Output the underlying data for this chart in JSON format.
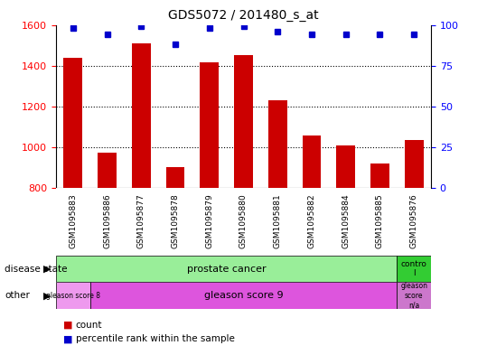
{
  "title": "GDS5072 / 201480_s_at",
  "samples": [
    "GSM1095883",
    "GSM1095886",
    "GSM1095877",
    "GSM1095878",
    "GSM1095879",
    "GSM1095880",
    "GSM1095881",
    "GSM1095882",
    "GSM1095884",
    "GSM1095885",
    "GSM1095876"
  ],
  "counts": [
    1440,
    975,
    1510,
    905,
    1415,
    1450,
    1230,
    1060,
    1010,
    920,
    1035
  ],
  "percentile_ranks": [
    98,
    94,
    99,
    88,
    98,
    99,
    96,
    94,
    94,
    94,
    94
  ],
  "ylim_left": [
    800,
    1600
  ],
  "ylim_right": [
    0,
    100
  ],
  "yticks_left": [
    800,
    1000,
    1200,
    1400,
    1600
  ],
  "yticks_right": [
    0,
    25,
    50,
    75,
    100
  ],
  "bar_color": "#cc0000",
  "dot_color": "#0000cc",
  "bg_color": "#ffffff",
  "plot_bg": "#ffffff",
  "sample_bg": "#cccccc",
  "disease_state_pc_color": "#99ee99",
  "disease_state_ctrl_color": "#33cc33",
  "gleason8_color": "#ee99ee",
  "gleason9_color": "#dd55dd",
  "gleasonNA_color": "#cc77cc",
  "label_row1": "disease state",
  "label_row2": "other",
  "legend_count": "count",
  "legend_percentile": "percentile rank within the sample"
}
